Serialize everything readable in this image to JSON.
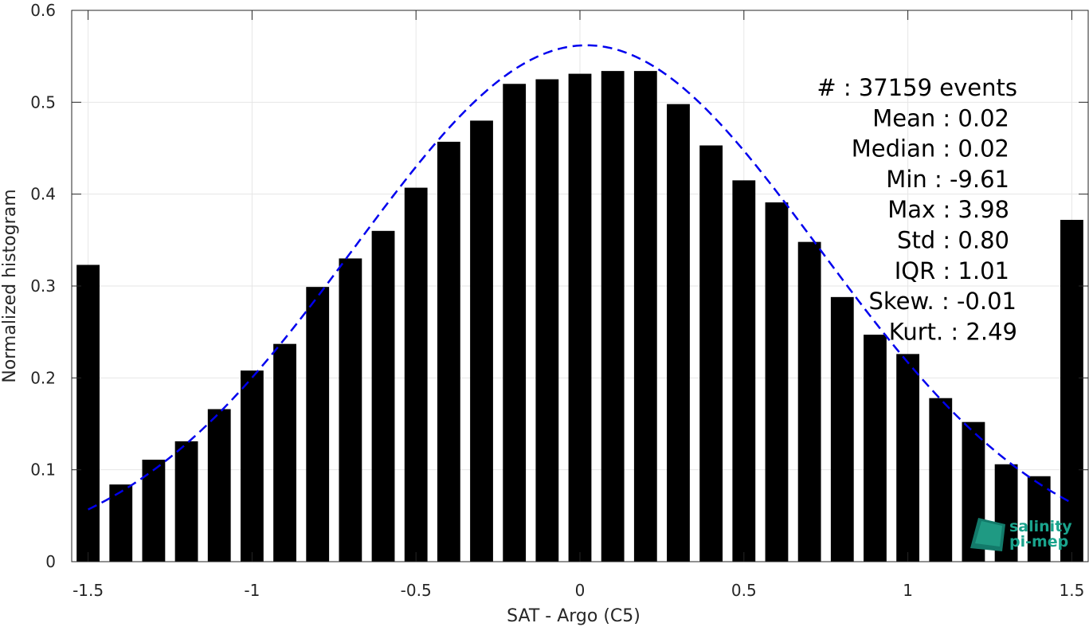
{
  "chart_data": {
    "type": "bar",
    "xlabel": "SAT - Argo (C5)",
    "ylabel": "Normalized histogram",
    "xlim": [
      -1.55,
      1.55
    ],
    "ylim": [
      0,
      0.6
    ],
    "grid": true,
    "x_ticks": [
      -1.5,
      -1,
      -0.5,
      0,
      0.5,
      1,
      1.5
    ],
    "x_tick_labels": [
      "-1.5",
      "-1",
      "-0.5",
      "0",
      "0.5",
      "1",
      "1.5"
    ],
    "y_ticks": [
      0,
      0.1,
      0.2,
      0.3,
      0.4,
      0.5,
      0.6
    ],
    "y_tick_labels": [
      "0",
      "0.1",
      "0.2",
      "0.3",
      "0.4",
      "0.5",
      "0.6"
    ],
    "bar_width": 0.07,
    "bar_color": "#000000",
    "bars": [
      {
        "x": -1.5,
        "y": 0.323
      },
      {
        "x": -1.4,
        "y": 0.084
      },
      {
        "x": -1.3,
        "y": 0.111
      },
      {
        "x": -1.2,
        "y": 0.131
      },
      {
        "x": -1.1,
        "y": 0.166
      },
      {
        "x": -1.0,
        "y": 0.208
      },
      {
        "x": -0.9,
        "y": 0.237
      },
      {
        "x": -0.8,
        "y": 0.299
      },
      {
        "x": -0.7,
        "y": 0.33
      },
      {
        "x": -0.6,
        "y": 0.36
      },
      {
        "x": -0.5,
        "y": 0.407
      },
      {
        "x": -0.4,
        "y": 0.457
      },
      {
        "x": -0.3,
        "y": 0.48
      },
      {
        "x": -0.2,
        "y": 0.52
      },
      {
        "x": -0.1,
        "y": 0.525
      },
      {
        "x": 0.0,
        "y": 0.531
      },
      {
        "x": 0.1,
        "y": 0.534
      },
      {
        "x": 0.2,
        "y": 0.534
      },
      {
        "x": 0.3,
        "y": 0.498
      },
      {
        "x": 0.4,
        "y": 0.453
      },
      {
        "x": 0.5,
        "y": 0.415
      },
      {
        "x": 0.6,
        "y": 0.391
      },
      {
        "x": 0.7,
        "y": 0.348
      },
      {
        "x": 0.8,
        "y": 0.288
      },
      {
        "x": 0.9,
        "y": 0.247
      },
      {
        "x": 1.0,
        "y": 0.226
      },
      {
        "x": 1.1,
        "y": 0.178
      },
      {
        "x": 1.2,
        "y": 0.152
      },
      {
        "x": 1.3,
        "y": 0.106
      },
      {
        "x": 1.4,
        "y": 0.093
      },
      {
        "x": 1.5,
        "y": 0.372
      }
    ],
    "fit_curve": {
      "style": "dashed",
      "color": "#0000ee",
      "mean": 0.02,
      "std": 0.71,
      "peak": 0.562,
      "x_range": [
        -1.5,
        1.5
      ]
    },
    "annotations": [
      "#  : 37159 events",
      "Mean : 0.02",
      "Median : 0.02",
      "Min : -9.61",
      "Max : 3.98",
      "Std : 0.80",
      "IQR : 1.01",
      "Skew. : -0.01",
      "Kurt. : 2.49"
    ]
  },
  "logo": {
    "line1": "salinity",
    "line2": "pi-mep",
    "color": "#1aa38c"
  }
}
